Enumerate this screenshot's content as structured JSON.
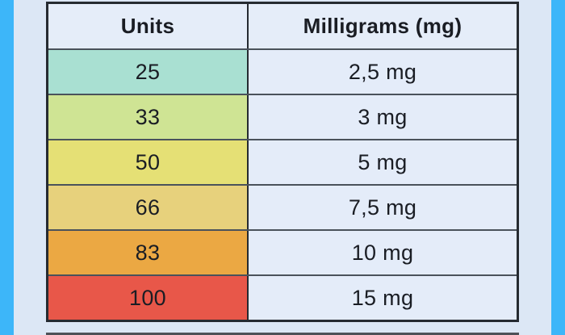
{
  "table": {
    "headers": [
      {
        "label": "Units"
      },
      {
        "label": "Milligrams (mg)"
      }
    ],
    "rows": [
      {
        "units": "25",
        "mg": "2,5 mg",
        "color": "#a9e0d2"
      },
      {
        "units": "33",
        "mg": "3 mg",
        "color": "#cfe494"
      },
      {
        "units": "50",
        "mg": "5 mg",
        "color": "#e5e075"
      },
      {
        "units": "66",
        "mg": "7,5 mg",
        "color": "#e7d17c"
      },
      {
        "units": "83",
        "mg": "10 mg",
        "color": "#eba843"
      },
      {
        "units": "100",
        "mg": "15 mg",
        "color": "#e85749"
      }
    ]
  },
  "colors": {
    "frame_blue": "#3db6f9",
    "background": "#dce7f5",
    "header_bg": "#e5edf9",
    "mg_cell_bg": "#e4ecf9",
    "border_dark": "#262b31",
    "row_divider": "#4a525b",
    "text": "#1a1d24",
    "shadow": "#4d5157"
  }
}
